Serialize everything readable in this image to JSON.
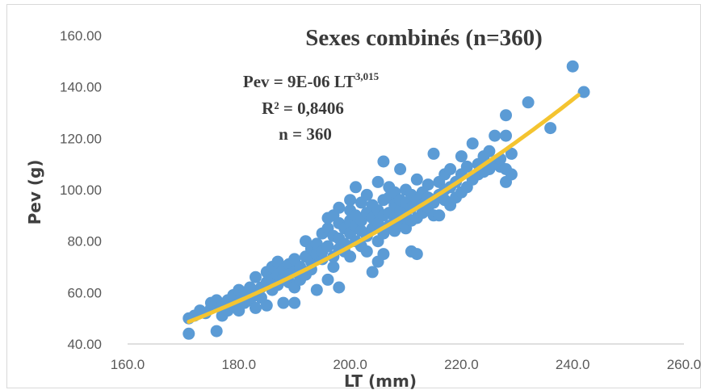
{
  "chart_data": {
    "type": "scatter",
    "title": "Sexes combinés (n=360)",
    "xlabel": "LT (mm)",
    "ylabel": "Pev (g)",
    "xlim": [
      160,
      260
    ],
    "ylim": [
      40,
      160
    ],
    "x_ticks": [
      "160.0",
      "180.0",
      "200.0",
      "220.0",
      "240.0",
      "260.0"
    ],
    "y_ticks": [
      "40.00",
      "60.00",
      "80.00",
      "100.00",
      "120.00",
      "140.00",
      "160.00"
    ],
    "grid": false,
    "annotations": {
      "equation_main": "Pev = 9E-06 LT",
      "equation_exponent": "3,015",
      "r_squared": "R² = 0,8406",
      "n": "n = 360"
    },
    "trendline": {
      "type": "power",
      "coefficient": 9e-06,
      "exponent": 3.015,
      "x_range": [
        171,
        241
      ],
      "color": "#f4c430"
    },
    "series": [
      {
        "color": "#5b9bd5",
        "points": [
          [
            171,
            44
          ],
          [
            171,
            50
          ],
          [
            172,
            51
          ],
          [
            173,
            53
          ],
          [
            174,
            52
          ],
          [
            175,
            54
          ],
          [
            175,
            56
          ],
          [
            176,
            45
          ],
          [
            176,
            57
          ],
          [
            177,
            51
          ],
          [
            177,
            55
          ],
          [
            178,
            53
          ],
          [
            178,
            57
          ],
          [
            179,
            59
          ],
          [
            179,
            55
          ],
          [
            180,
            58
          ],
          [
            180,
            61
          ],
          [
            180,
            53
          ],
          [
            181,
            56
          ],
          [
            181,
            60
          ],
          [
            182,
            57
          ],
          [
            182,
            62
          ],
          [
            183,
            54
          ],
          [
            183,
            59
          ],
          [
            183,
            66
          ],
          [
            184,
            62
          ],
          [
            184,
            58
          ],
          [
            185,
            64
          ],
          [
            185,
            55
          ],
          [
            185,
            68
          ],
          [
            186,
            65
          ],
          [
            186,
            61
          ],
          [
            186,
            70
          ],
          [
            187,
            63
          ],
          [
            187,
            67
          ],
          [
            187,
            72
          ],
          [
            188,
            56
          ],
          [
            188,
            66
          ],
          [
            188,
            69
          ],
          [
            189,
            64
          ],
          [
            189,
            71
          ],
          [
            189,
            67
          ],
          [
            190,
            56
          ],
          [
            190,
            62
          ],
          [
            190,
            68
          ],
          [
            190,
            73
          ],
          [
            191,
            65
          ],
          [
            191,
            70
          ],
          [
            192,
            74
          ],
          [
            192,
            80
          ],
          [
            192,
            67
          ],
          [
            193,
            72
          ],
          [
            193,
            77
          ],
          [
            193,
            69
          ],
          [
            194,
            61
          ],
          [
            194,
            75
          ],
          [
            194,
            79
          ],
          [
            195,
            73
          ],
          [
            195,
            76
          ],
          [
            195,
            83
          ],
          [
            196,
            65
          ],
          [
            196,
            78
          ],
          [
            196,
            85
          ],
          [
            196,
            89
          ],
          [
            197,
            70
          ],
          [
            197,
            74
          ],
          [
            197,
            82
          ],
          [
            197,
            90
          ],
          [
            198,
            62
          ],
          [
            198,
            77
          ],
          [
            198,
            81
          ],
          [
            198,
            87
          ],
          [
            198,
            93
          ],
          [
            199,
            76
          ],
          [
            199,
            79
          ],
          [
            199,
            85
          ],
          [
            200,
            74
          ],
          [
            200,
            83
          ],
          [
            200,
            88
          ],
          [
            200,
            92
          ],
          [
            200,
            96
          ],
          [
            201,
            80
          ],
          [
            201,
            86
          ],
          [
            201,
            90
          ],
          [
            201,
            101
          ],
          [
            202,
            78
          ],
          [
            202,
            84
          ],
          [
            202,
            88
          ],
          [
            202,
            95
          ],
          [
            203,
            76
          ],
          [
            203,
            82
          ],
          [
            203,
            91
          ],
          [
            203,
            98
          ],
          [
            204,
            68
          ],
          [
            204,
            85
          ],
          [
            204,
            89
          ],
          [
            204,
            94
          ],
          [
            205,
            72
          ],
          [
            205,
            80
          ],
          [
            205,
            87
          ],
          [
            205,
            92
          ],
          [
            205,
            103
          ],
          [
            206,
            75
          ],
          [
            206,
            83
          ],
          [
            206,
            90
          ],
          [
            206,
            96
          ],
          [
            206,
            111
          ],
          [
            207,
            86
          ],
          [
            207,
            91
          ],
          [
            207,
            97
          ],
          [
            207,
            101
          ],
          [
            208,
            84
          ],
          [
            208,
            89
          ],
          [
            208,
            94
          ],
          [
            208,
            99
          ],
          [
            209,
            87
          ],
          [
            209,
            92
          ],
          [
            209,
            96
          ],
          [
            209,
            108
          ],
          [
            210,
            85
          ],
          [
            210,
            90
          ],
          [
            210,
            95
          ],
          [
            210,
            100
          ],
          [
            211,
            76
          ],
          [
            211,
            88
          ],
          [
            211,
            93
          ],
          [
            211,
            98
          ],
          [
            212,
            75
          ],
          [
            212,
            89
          ],
          [
            212,
            96
          ],
          [
            212,
            104
          ],
          [
            213,
            91
          ],
          [
            213,
            94
          ],
          [
            213,
            99
          ],
          [
            214,
            93
          ],
          [
            214,
            97
          ],
          [
            214,
            102
          ],
          [
            215,
            90
          ],
          [
            215,
            95
          ],
          [
            215,
            114
          ],
          [
            216,
            90
          ],
          [
            216,
            98
          ],
          [
            216,
            103
          ],
          [
            217,
            96
          ],
          [
            217,
            100
          ],
          [
            217,
            106
          ],
          [
            218,
            94
          ],
          [
            218,
            101
          ],
          [
            218,
            108
          ],
          [
            219,
            97
          ],
          [
            219,
            103
          ],
          [
            220,
            99
          ],
          [
            220,
            106
          ],
          [
            220,
            113
          ],
          [
            221,
            101
          ],
          [
            221,
            109
          ],
          [
            222,
            104
          ],
          [
            222,
            118
          ],
          [
            223,
            106
          ],
          [
            223,
            110
          ],
          [
            224,
            107
          ],
          [
            224,
            113
          ],
          [
            225,
            108
          ],
          [
            225,
            115
          ],
          [
            226,
            110
          ],
          [
            226,
            121
          ],
          [
            227,
            109
          ],
          [
            227,
            112
          ],
          [
            228,
            103
          ],
          [
            228,
            108
          ],
          [
            228,
            121
          ],
          [
            228,
            129
          ],
          [
            229,
            106
          ],
          [
            229,
            114
          ],
          [
            232,
            134
          ],
          [
            236,
            124
          ],
          [
            240,
            148
          ],
          [
            242,
            138
          ]
        ]
      }
    ]
  }
}
